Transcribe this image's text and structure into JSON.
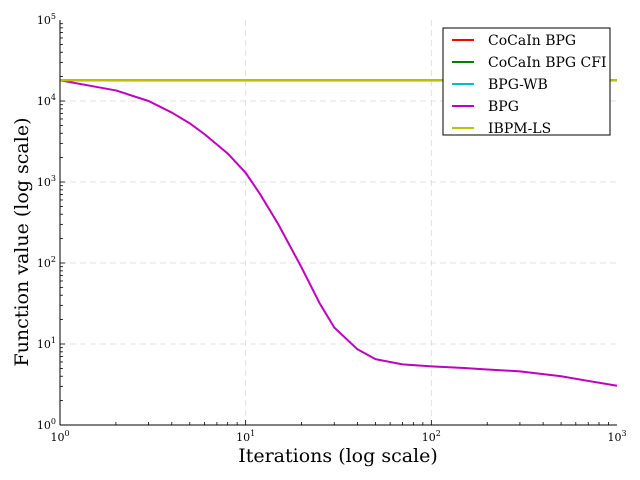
{
  "chart_data": {
    "type": "line",
    "xlabel": "Iterations (log scale)",
    "ylabel": "Function value (log scale)",
    "x_scale": "log",
    "y_scale": "log",
    "xlim": [
      1,
      1000
    ],
    "ylim": [
      1,
      100000
    ],
    "x_ticks": [
      1,
      10,
      100,
      1000
    ],
    "y_ticks": [
      1,
      10,
      100,
      1000,
      10000,
      100000
    ],
    "grid": true,
    "legend_position": "top-right",
    "series": [
      {
        "name": "CoCaIn BPG",
        "color": "#ff0000",
        "x": [
          1,
          1000
        ],
        "y": [
          18000,
          18000
        ]
      },
      {
        "name": "CoCaIn BPG CFI",
        "color": "#008000",
        "x": [
          1,
          1000
        ],
        "y": [
          18000,
          18000
        ]
      },
      {
        "name": "BPG-WB",
        "color": "#00bfbf",
        "x": [
          1,
          1000
        ],
        "y": [
          18000,
          18000
        ]
      },
      {
        "name": "BPG",
        "color": "#bf00bf",
        "x": [
          1,
          2,
          3,
          4,
          5,
          6,
          8,
          10,
          12,
          15,
          20,
          25,
          30,
          40,
          50,
          70,
          100,
          150,
          200,
          300,
          500,
          700,
          1000
        ],
        "y": [
          18000,
          13500,
          10000,
          7200,
          5300,
          3900,
          2250,
          1300,
          700,
          300,
          88,
          32,
          16,
          8.6,
          6.5,
          5.6,
          5.3,
          5.05,
          4.85,
          4.6,
          4.0,
          3.5,
          3.05
        ]
      },
      {
        "name": "IBPM-LS",
        "color": "#bfbf00",
        "x": [
          1,
          1000
        ],
        "y": [
          18000,
          18000
        ]
      }
    ]
  }
}
